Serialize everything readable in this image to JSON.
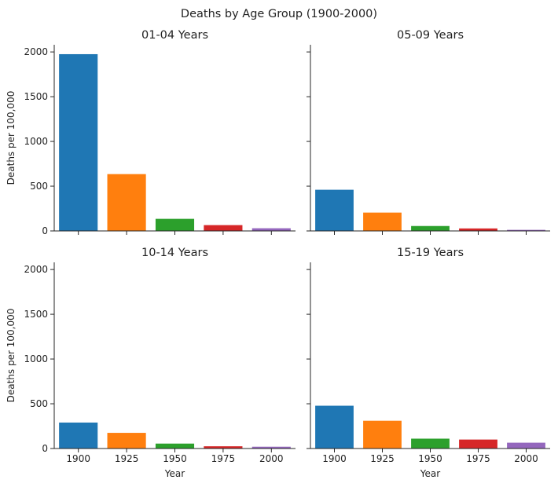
{
  "chart_data": {
    "type": "bar",
    "title": "Deaths by Age Group (1900-2000)",
    "categories": [
      "1900",
      "1925",
      "1950",
      "1975",
      "2000"
    ],
    "xlabel": "Year",
    "ylabel": "Deaths per 100,000",
    "ylim": [
      0,
      2080
    ],
    "yticks": [
      0,
      500,
      1000,
      1500,
      2000
    ],
    "grid": false,
    "colors": [
      "#1f77b4",
      "#ff7f0e",
      "#2ca02c",
      "#d62728",
      "#9467bd"
    ],
    "panels": [
      {
        "title": "01-04 Years",
        "values": [
          1975,
          635,
          135,
          65,
          30
        ]
      },
      {
        "title": "05-09 Years",
        "values": [
          460,
          205,
          55,
          28,
          12
        ]
      },
      {
        "title": "10-14 Years",
        "values": [
          290,
          175,
          55,
          25,
          20
        ]
      },
      {
        "title": "15-19 Years",
        "values": [
          478,
          310,
          110,
          100,
          65
        ]
      }
    ]
  }
}
